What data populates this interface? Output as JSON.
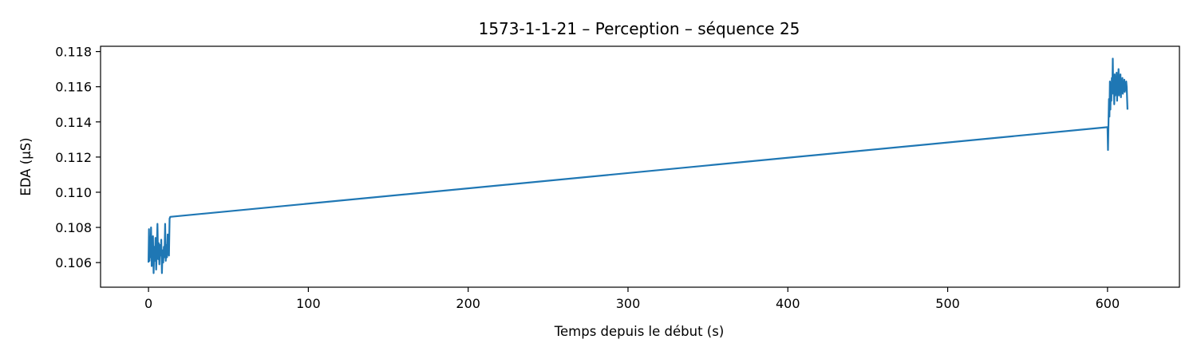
{
  "chart_data": {
    "type": "line",
    "title": "1573-1-1-21 – Perception – séquence 25",
    "xlabel": "Temps depuis le début (s)",
    "ylabel": "EDA (µS)",
    "xlim": [
      -30,
      645
    ],
    "ylim": [
      0.1046,
      0.1183
    ],
    "xticks": [
      0,
      100,
      200,
      300,
      400,
      500,
      600
    ],
    "yticks": [
      0.106,
      0.108,
      0.11,
      0.112,
      0.114,
      0.116,
      0.118
    ],
    "ytick_labels": [
      "0.106",
      "0.108",
      "0.110",
      "0.112",
      "0.114",
      "0.116",
      "0.118"
    ],
    "grid": false,
    "line_color": "#1f77b4",
    "series": [
      {
        "x": [
          0,
          0.3,
          0.6,
          0.9,
          1.2,
          1.6,
          2.0,
          2.4,
          2.8,
          3.2,
          3.6,
          4.0,
          4.4,
          4.8,
          5.2,
          5.6,
          6.0,
          6.4,
          6.8,
          7.2,
          7.6,
          8.0,
          8.4,
          8.8,
          9.2,
          9.6,
          10.0,
          10.4,
          10.8,
          11.2,
          11.6,
          12.0,
          12.4,
          12.8,
          13.2,
          13.6,
          600.0,
          600.3,
          600.6,
          600.9,
          601.2,
          601.5,
          601.8,
          602.1,
          602.4,
          602.7,
          603.0,
          603.3,
          603.6,
          603.9,
          604.2,
          604.5,
          604.8,
          605.1,
          605.4,
          605.7,
          606.0,
          606.3,
          606.6,
          606.9,
          607.2,
          607.5,
          607.8,
          608.1,
          608.4,
          608.7,
          609.0,
          609.3,
          609.6,
          609.9,
          610.2,
          610.5,
          610.8,
          611.1,
          611.4,
          611.7,
          612.0,
          612.5
        ],
        "y": [
          0.106,
          0.1079,
          0.1061,
          0.1072,
          0.1063,
          0.108,
          0.1058,
          0.1066,
          0.1075,
          0.1054,
          0.1069,
          0.1061,
          0.1074,
          0.1056,
          0.1068,
          0.1082,
          0.1062,
          0.1071,
          0.1059,
          0.107,
          0.1064,
          0.1073,
          0.1054,
          0.1067,
          0.106,
          0.1069,
          0.1063,
          0.1082,
          0.1061,
          0.107,
          0.1063,
          0.1076,
          0.1068,
          0.1064,
          0.1085,
          0.1086,
          0.1137,
          0.1124,
          0.1139,
          0.1153,
          0.1143,
          0.1163,
          0.1147,
          0.1162,
          0.1152,
          0.1165,
          0.1158,
          0.1176,
          0.1156,
          0.1163,
          0.115,
          0.1167,
          0.1155,
          0.1164,
          0.1159,
          0.1168,
          0.1152,
          0.1166,
          0.1158,
          0.117,
          0.1155,
          0.1164,
          0.116,
          0.1167,
          0.1154,
          0.1163,
          0.1158,
          0.1165,
          0.1156,
          0.1162,
          0.1159,
          0.1164,
          0.1157,
          0.1161,
          0.1158,
          0.1163,
          0.116,
          0.1147
        ]
      }
    ]
  }
}
